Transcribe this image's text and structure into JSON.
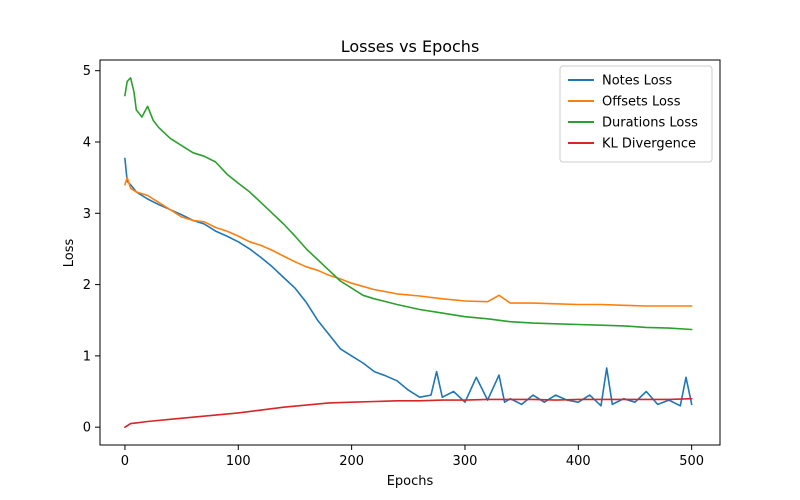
{
  "chart_data": {
    "type": "line",
    "title": "Losses vs Epochs",
    "xlabel": "Epochs",
    "ylabel": "Loss",
    "xlim": [
      -22,
      525
    ],
    "ylim": [
      -0.25,
      5.15
    ],
    "xticks": [
      0,
      100,
      200,
      300,
      400,
      500
    ],
    "yticks": [
      0,
      1,
      2,
      3,
      4,
      5
    ],
    "grid": false,
    "legend_position": "top-right",
    "series": [
      {
        "name": "Notes Loss",
        "color": "#1f77b4",
        "x": [
          0,
          2,
          5,
          10,
          20,
          30,
          40,
          50,
          60,
          70,
          80,
          90,
          100,
          110,
          120,
          130,
          140,
          150,
          160,
          170,
          180,
          190,
          200,
          210,
          220,
          230,
          240,
          250,
          260,
          270,
          275,
          280,
          290,
          300,
          310,
          320,
          330,
          335,
          340,
          350,
          360,
          370,
          380,
          390,
          400,
          410,
          420,
          425,
          430,
          440,
          450,
          460,
          470,
          480,
          490,
          495,
          500
        ],
        "y": [
          3.77,
          3.45,
          3.4,
          3.3,
          3.2,
          3.12,
          3.05,
          2.98,
          2.9,
          2.85,
          2.75,
          2.68,
          2.6,
          2.5,
          2.38,
          2.25,
          2.1,
          1.95,
          1.75,
          1.5,
          1.3,
          1.1,
          1.0,
          0.9,
          0.78,
          0.72,
          0.65,
          0.52,
          0.42,
          0.45,
          0.78,
          0.42,
          0.5,
          0.35,
          0.7,
          0.38,
          0.73,
          0.35,
          0.4,
          0.32,
          0.45,
          0.35,
          0.45,
          0.38,
          0.35,
          0.45,
          0.3,
          0.83,
          0.32,
          0.4,
          0.35,
          0.5,
          0.32,
          0.38,
          0.3,
          0.7,
          0.32
        ]
      },
      {
        "name": "Offsets Loss",
        "color": "#ff7f0e",
        "x": [
          0,
          2,
          5,
          10,
          20,
          30,
          40,
          50,
          60,
          70,
          80,
          90,
          100,
          110,
          120,
          130,
          140,
          150,
          160,
          170,
          180,
          190,
          200,
          220,
          240,
          260,
          280,
          300,
          320,
          330,
          340,
          360,
          380,
          400,
          420,
          440,
          460,
          480,
          500
        ],
        "y": [
          3.4,
          3.5,
          3.35,
          3.3,
          3.25,
          3.15,
          3.05,
          2.95,
          2.9,
          2.88,
          2.8,
          2.75,
          2.68,
          2.6,
          2.55,
          2.48,
          2.4,
          2.32,
          2.25,
          2.2,
          2.13,
          2.08,
          2.02,
          1.93,
          1.87,
          1.84,
          1.8,
          1.77,
          1.76,
          1.85,
          1.74,
          1.74,
          1.73,
          1.72,
          1.72,
          1.71,
          1.7,
          1.7,
          1.7
        ]
      },
      {
        "name": "Durations Loss",
        "color": "#2ca02c",
        "x": [
          0,
          2,
          5,
          8,
          10,
          15,
          20,
          25,
          30,
          40,
          50,
          60,
          70,
          80,
          90,
          100,
          110,
          120,
          130,
          140,
          150,
          160,
          170,
          180,
          190,
          200,
          210,
          220,
          240,
          260,
          280,
          300,
          320,
          340,
          360,
          380,
          400,
          420,
          440,
          460,
          480,
          500
        ],
        "y": [
          4.65,
          4.85,
          4.9,
          4.7,
          4.45,
          4.35,
          4.5,
          4.3,
          4.2,
          4.05,
          3.95,
          3.85,
          3.8,
          3.72,
          3.55,
          3.42,
          3.3,
          3.15,
          3.0,
          2.85,
          2.68,
          2.5,
          2.35,
          2.2,
          2.05,
          1.95,
          1.85,
          1.8,
          1.72,
          1.65,
          1.6,
          1.55,
          1.52,
          1.48,
          1.46,
          1.45,
          1.44,
          1.43,
          1.42,
          1.4,
          1.39,
          1.37
        ]
      },
      {
        "name": "KL Divergence",
        "color": "#d62728",
        "x": [
          0,
          5,
          10,
          20,
          40,
          60,
          80,
          100,
          120,
          140,
          160,
          180,
          200,
          220,
          240,
          260,
          280,
          300,
          320,
          340,
          360,
          380,
          400,
          420,
          440,
          460,
          480,
          500
        ],
        "y": [
          0.0,
          0.05,
          0.06,
          0.08,
          0.11,
          0.14,
          0.17,
          0.2,
          0.24,
          0.28,
          0.31,
          0.34,
          0.35,
          0.36,
          0.37,
          0.37,
          0.38,
          0.38,
          0.39,
          0.39,
          0.39,
          0.38,
          0.39,
          0.39,
          0.39,
          0.39,
          0.39,
          0.4
        ]
      }
    ]
  }
}
